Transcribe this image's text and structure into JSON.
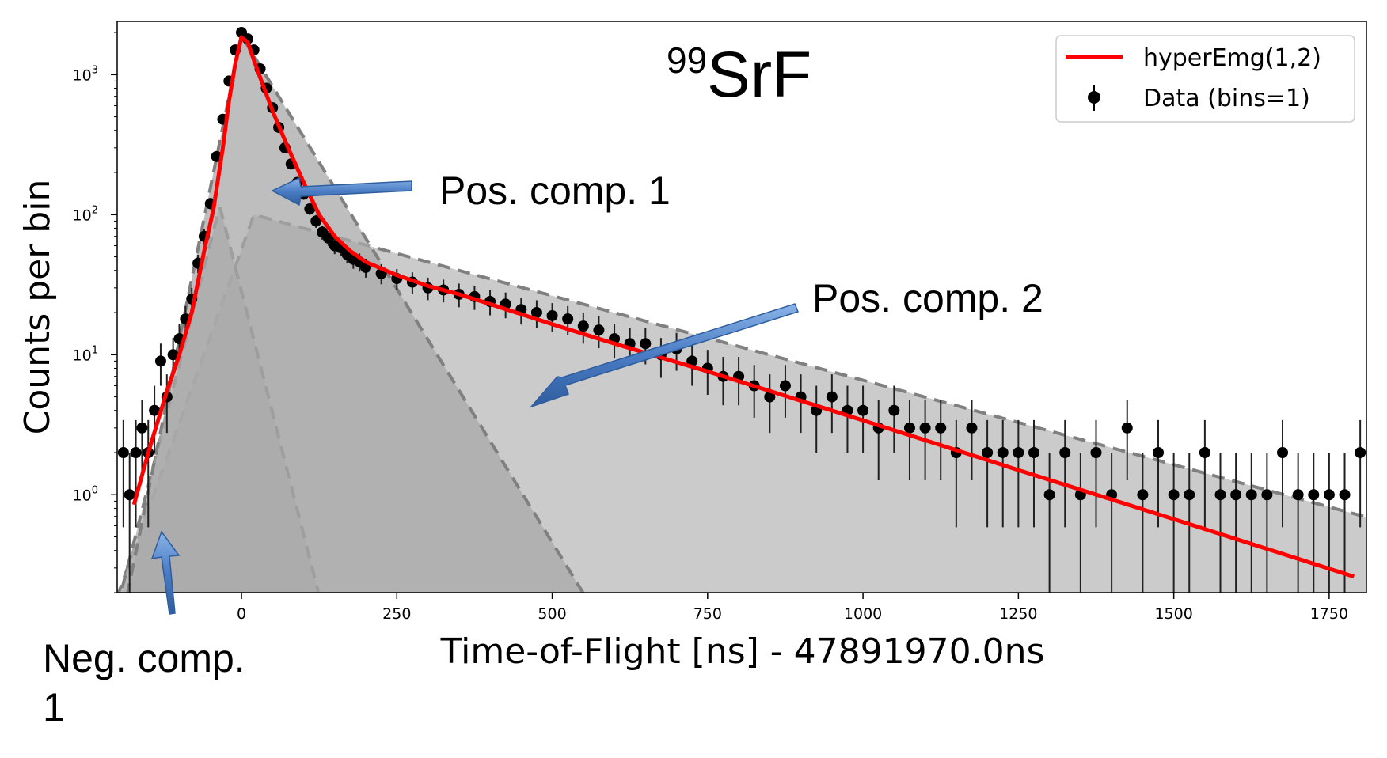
{
  "chart_data": {
    "type": "scatter",
    "title": {
      "superscript": "99",
      "main": "SrF"
    },
    "xlabel": "Time-of-Flight [ns] - 47891970.0ns",
    "ylabel": "Counts per bin",
    "xlim": [
      -200,
      1810
    ],
    "ylim": [
      0.2,
      2400
    ],
    "yscale": "log",
    "grid": false,
    "legend_position": "top-right",
    "xticks": [
      {
        "value": 0,
        "label": "0"
      },
      {
        "value": 250,
        "label": "250"
      },
      {
        "value": 500,
        "label": "500"
      },
      {
        "value": 750,
        "label": "750"
      },
      {
        "value": 1000,
        "label": "1000"
      },
      {
        "value": 1250,
        "label": "1250"
      },
      {
        "value": 1500,
        "label": "1500"
      },
      {
        "value": 1750,
        "label": "1750"
      }
    ],
    "yticks": [
      {
        "value": 1,
        "base": "10",
        "exp": "0"
      },
      {
        "value": 10,
        "base": "10",
        "exp": "1"
      },
      {
        "value": 100,
        "base": "10",
        "exp": "2"
      },
      {
        "value": 1000,
        "base": "10",
        "exp": "3"
      }
    ],
    "series": [
      {
        "name": "hyperEmg(1,2)",
        "kind": "line",
        "color": "#ff0000",
        "x": [
          -173,
          -150,
          -120,
          -100,
          -80,
          -60,
          -45,
          -30,
          -20,
          -10,
          0,
          10,
          25,
          50,
          75,
          100,
          125,
          150,
          175,
          200,
          250,
          300,
          350,
          400,
          500,
          600,
          750,
          1000,
          1250,
          1500,
          1790
        ],
        "y": [
          0.85,
          2.0,
          5.5,
          10,
          20,
          55,
          110,
          300,
          650,
          1200,
          1850,
          1700,
          1100,
          550,
          300,
          170,
          100,
          70,
          55,
          46,
          37,
          31,
          27,
          23,
          16.5,
          12,
          7.6,
          3.4,
          1.5,
          0.67,
          0.26
        ]
      },
      {
        "name": "Data (bins=1)",
        "kind": "errorbar",
        "color": "#000000",
        "x": [
          -190,
          -180,
          -170,
          -160,
          -150,
          -140,
          -130,
          -120,
          -110,
          -100,
          -90,
          -80,
          -70,
          -60,
          -50,
          -40,
          -30,
          -20,
          -10,
          0,
          10,
          20,
          30,
          40,
          50,
          60,
          70,
          80,
          90,
          100,
          110,
          120,
          130,
          140,
          150,
          160,
          170,
          180,
          190,
          200,
          225,
          250,
          275,
          300,
          325,
          350,
          375,
          400,
          425,
          450,
          475,
          500,
          525,
          550,
          575,
          600,
          625,
          650,
          675,
          700,
          725,
          750,
          775,
          800,
          825,
          850,
          875,
          900,
          925,
          950,
          975,
          1000,
          1025,
          1050,
          1075,
          1100,
          1125,
          1150,
          1175,
          1200,
          1225,
          1250,
          1275,
          1300,
          1325,
          1350,
          1375,
          1400,
          1425,
          1450,
          1475,
          1500,
          1525,
          1550,
          1575,
          1600,
          1625,
          1650,
          1675,
          1700,
          1725,
          1750,
          1775,
          1800
        ],
        "y": [
          2,
          1,
          2,
          3,
          2,
          4,
          9,
          5,
          10,
          13,
          18,
          25,
          45,
          70,
          120,
          260,
          480,
          900,
          1500,
          2000,
          1800,
          1500,
          1100,
          800,
          580,
          420,
          300,
          230,
          170,
          140,
          110,
          90,
          75,
          68,
          60,
          58,
          52,
          48,
          46,
          42,
          38,
          35,
          33,
          30,
          29,
          27,
          26,
          24,
          23,
          21,
          20,
          19,
          18,
          16,
          15,
          13,
          12,
          12,
          10,
          11,
          9,
          8,
          7,
          7,
          6,
          5,
          6,
          5,
          4,
          5,
          4,
          4,
          3,
          4,
          3,
          3,
          3,
          2,
          3,
          2,
          2,
          2,
          2,
          1,
          2,
          1,
          2,
          1,
          3,
          1,
          2,
          1,
          1,
          2,
          1,
          1,
          1,
          1,
          2,
          1,
          1,
          1,
          1,
          2
        ]
      }
    ],
    "components": [
      {
        "label": "Neg. comp. 1",
        "center": -35,
        "peak": 115,
        "left_scale": 25,
        "right_scale": 25
      },
      {
        "label": "Pos. comp. 1",
        "center": 0,
        "peak": 1900,
        "left_scale": 20,
        "right_scale": 60
      },
      {
        "label": "Pos. comp. 2",
        "center": 20,
        "peak": 100,
        "left_scale": 35,
        "right_scale": 360
      }
    ],
    "annotations": [
      {
        "id": "pos1",
        "text": "Pos. comp. 1"
      },
      {
        "id": "pos2",
        "text": "Pos. comp. 2"
      },
      {
        "id": "neg1",
        "lines": [
          "Neg. comp.",
          "1"
        ]
      }
    ]
  }
}
